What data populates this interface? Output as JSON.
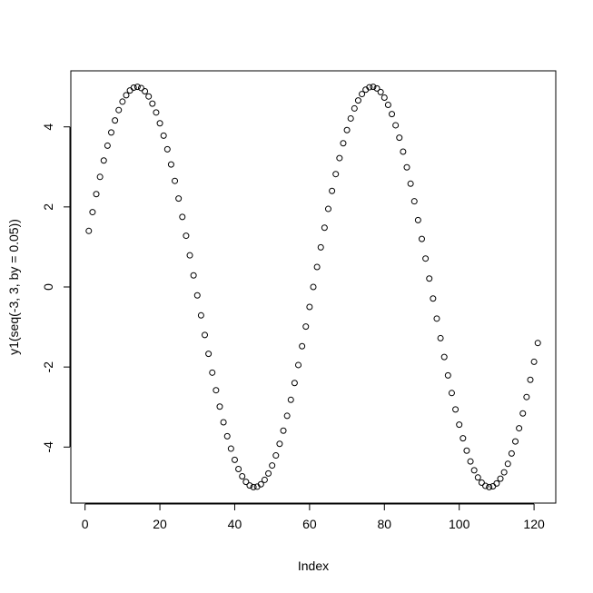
{
  "chart_data": {
    "type": "scatter",
    "xlabel": "Index",
    "ylabel": "y1(seq(-3, 3, by = 0.05))",
    "x": [
      1,
      2,
      3,
      4,
      5,
      6,
      7,
      8,
      9,
      10,
      11,
      12,
      13,
      14,
      15,
      16,
      17,
      18,
      19,
      20,
      21,
      22,
      23,
      24,
      25,
      26,
      27,
      28,
      29,
      30,
      31,
      32,
      33,
      34,
      35,
      36,
      37,
      38,
      39,
      40,
      41,
      42,
      43,
      44,
      45,
      46,
      47,
      48,
      49,
      50,
      51,
      52,
      53,
      54,
      55,
      56,
      57,
      58,
      59,
      60,
      61,
      62,
      63,
      64,
      65,
      66,
      67,
      68,
      69,
      70,
      71,
      72,
      73,
      74,
      75,
      76,
      77,
      78,
      79,
      80,
      81,
      82,
      83,
      84,
      85,
      86,
      87,
      88,
      89,
      90,
      91,
      92,
      93,
      94,
      95,
      96,
      97,
      98,
      99,
      100,
      101,
      102,
      103,
      104,
      105,
      106,
      107,
      108,
      109,
      110,
      111,
      112,
      113,
      114,
      115,
      116,
      117,
      118,
      119,
      120,
      121
    ],
    "values": [
      1.4,
      1.87,
      2.32,
      2.75,
      3.16,
      3.53,
      3.86,
      4.16,
      4.42,
      4.63,
      4.79,
      4.91,
      4.98,
      5.0,
      4.97,
      4.89,
      4.76,
      4.58,
      4.36,
      4.09,
      3.78,
      3.44,
      3.06,
      2.65,
      2.21,
      1.75,
      1.28,
      0.79,
      0.29,
      -0.21,
      -0.71,
      -1.2,
      -1.67,
      -2.14,
      -2.58,
      -2.99,
      -3.38,
      -3.73,
      -4.04,
      -4.32,
      -4.55,
      -4.73,
      -4.87,
      -4.96,
      -5.0,
      -4.99,
      -4.93,
      -4.82,
      -4.66,
      -4.46,
      -4.21,
      -3.92,
      -3.59,
      -3.22,
      -2.82,
      -2.4,
      -1.95,
      -1.48,
      -0.99,
      -0.5,
      0,
      0.5,
      0.99,
      1.48,
      1.95,
      2.4,
      2.82,
      3.22,
      3.59,
      3.92,
      4.21,
      4.46,
      4.66,
      4.82,
      4.93,
      4.99,
      5.0,
      4.96,
      4.87,
      4.73,
      4.55,
      4.32,
      4.04,
      3.73,
      3.38,
      2.99,
      2.58,
      2.14,
      1.67,
      1.2,
      0.71,
      0.21,
      -0.29,
      -0.79,
      -1.28,
      -1.75,
      -2.21,
      -2.65,
      -3.06,
      -3.44,
      -3.78,
      -4.09,
      -4.36,
      -4.58,
      -4.76,
      -4.89,
      -4.97,
      -5.0,
      -4.98,
      -4.91,
      -4.79,
      -4.63,
      -4.42,
      -4.16,
      -3.86,
      -3.53,
      -3.16,
      -2.75,
      -2.32,
      -1.87,
      -1.4
    ],
    "color": "#000000",
    "xlim": [
      -3.8,
      125.8
    ],
    "xticks": [
      0,
      20,
      40,
      60,
      80,
      100,
      120
    ],
    "ylim": [
      -5.4,
      5.4
    ],
    "yticks": [
      -4,
      -2,
      0,
      2,
      4
    ]
  }
}
